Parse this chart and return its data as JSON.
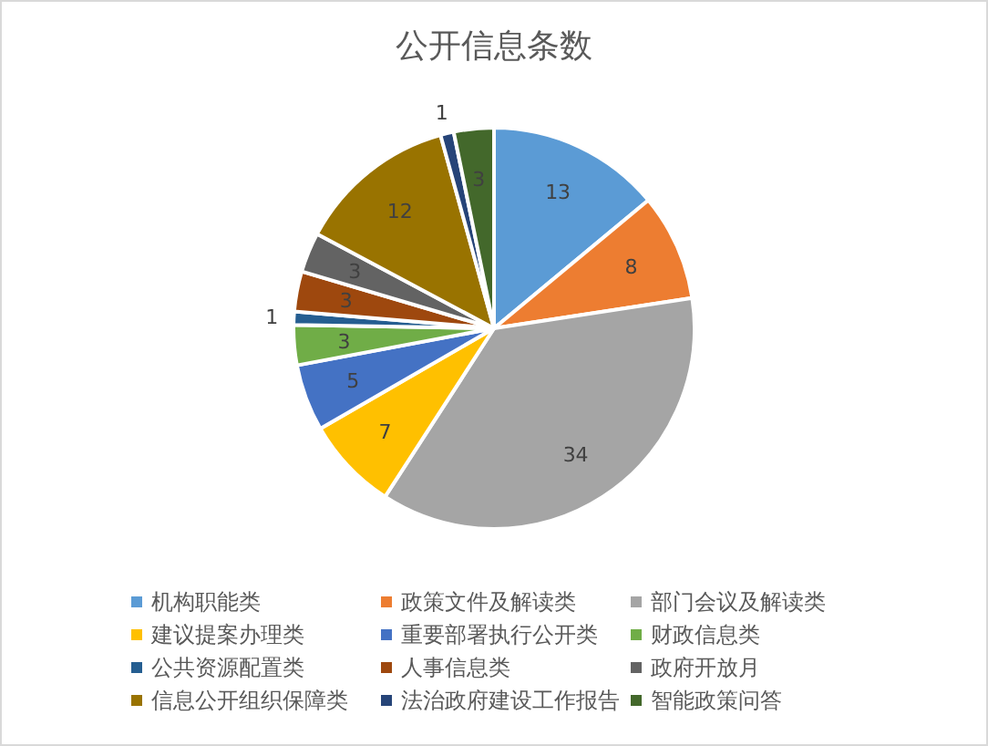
{
  "chart_data": {
    "type": "pie",
    "title": "公开信息条数",
    "categories": [
      "机构职能类",
      "政策文件及解读类",
      "部门会议及解读类",
      "建议提案办理类",
      "重要部署执行公开类",
      "财政信息类",
      "公共资源配置类",
      "人事信息类",
      "政府开放月",
      "信息公开组织保障类",
      "法治政府建设工作报告",
      "智能政策问答"
    ],
    "values": [
      13,
      8,
      34,
      7,
      5,
      3,
      1,
      3,
      3,
      12,
      1,
      3
    ],
    "colors": [
      "#5b9bd5",
      "#ed7d31",
      "#a5a5a5",
      "#ffc000",
      "#4472c4",
      "#70ad47",
      "#255e91",
      "#9e480e",
      "#636363",
      "#997300",
      "#264478",
      "#43682b"
    ],
    "data_labels": true,
    "legend": "bottom"
  }
}
